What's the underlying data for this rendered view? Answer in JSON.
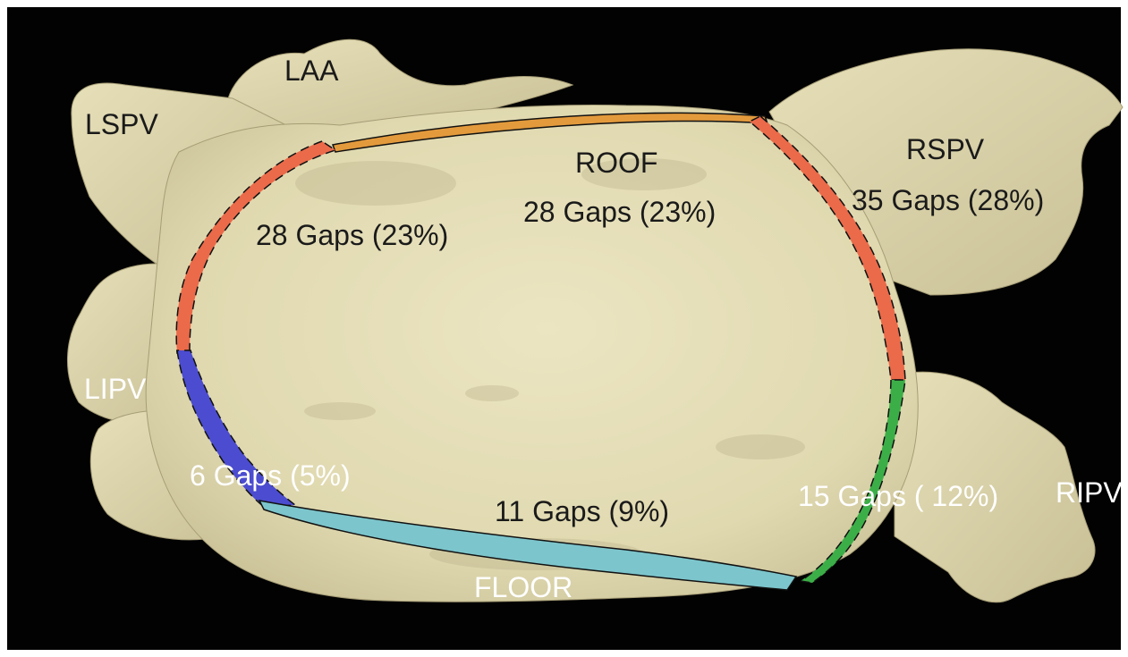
{
  "colors": {
    "background": "#020202",
    "atrium": "#e3dcb4",
    "atrium_shadow": "#b8ae86",
    "roof_line": "#e39a3c",
    "left_anterior_line": "#ea6a4a",
    "right_anterior_line": "#ea6a4a",
    "left_posterior_line": "#4b4ccf",
    "floor_line": "#7cc5cc",
    "right_posterior_line": "#3cae48",
    "dark_text": "#1a1a1a",
    "light_text": "#ffffff"
  },
  "labels": {
    "laa": "LAA",
    "lspv": "LSPV",
    "lipv": "LIPV",
    "rspv": "RSPV",
    "ripv": "RIPV",
    "roof": "ROOF",
    "floor": "FLOOR"
  },
  "segments": {
    "roof_gaps": "28 Gaps (23%)",
    "left_anterior_gaps": "28 Gaps (23%)",
    "right_anterior_gaps": "35 Gaps (28%)",
    "left_posterior_gaps": "6 Gaps (5%)",
    "floor_gaps": "11 Gaps (9%)",
    "right_posterior_gaps": "15 Gaps ( 12%)"
  }
}
